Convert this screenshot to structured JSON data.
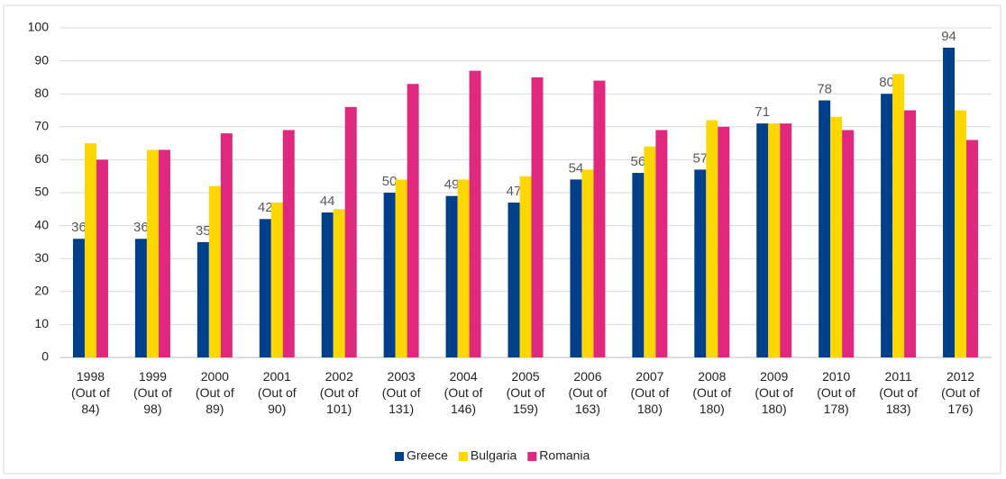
{
  "chart_data": {
    "type": "bar",
    "categories": [
      "1998 (Out of 84)",
      "1999 (Out of 98)",
      "2000 (Out of 89)",
      "2001 (Out of 90)",
      "2002 (Out of 101)",
      "2003 (Out of 131)",
      "2004 (Out of 146)",
      "2005 (Out of 159)",
      "2006 (Out of 163)",
      "2007 (Out of 180)",
      "2008 (Out of 180)",
      "2009 (Out of 180)",
      "2010 (Out of 178)",
      "2011 (Out of 183)",
      "2012 (Out of 176)"
    ],
    "series": [
      {
        "name": "Greece",
        "color": "#003f8a",
        "data_labels": true,
        "values": [
          36,
          36,
          35,
          42,
          44,
          50,
          49,
          47,
          54,
          56,
          57,
          71,
          78,
          80,
          94
        ]
      },
      {
        "name": "Bulgaria",
        "color": "#ffd700",
        "data_labels": false,
        "values": [
          65,
          63,
          52,
          47,
          45,
          54,
          54,
          55,
          57,
          64,
          72,
          71,
          73,
          86,
          75
        ]
      },
      {
        "name": "Romania",
        "color": "#e0287e",
        "data_labels": false,
        "values": [
          60,
          63,
          68,
          69,
          76,
          83,
          87,
          85,
          84,
          69,
          70,
          71,
          69,
          75,
          66
        ]
      }
    ],
    "ylim": [
      0,
      100
    ],
    "yticks": [
      0,
      10,
      20,
      30,
      40,
      50,
      60,
      70,
      80,
      90,
      100
    ],
    "grid": true,
    "legend": "bottom"
  }
}
